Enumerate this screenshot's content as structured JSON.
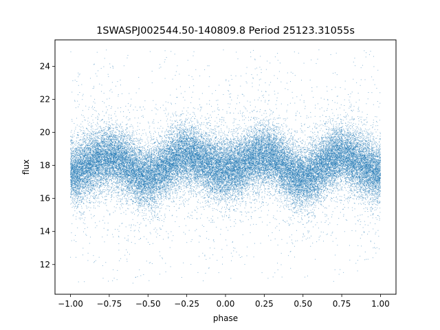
{
  "chart_data": {
    "type": "scatter",
    "title": "1SWASPJ002544.50-140809.8 Period 25123.31055s",
    "xlabel": "phase",
    "ylabel": "flux",
    "xlim": [
      -1.1,
      1.1
    ],
    "ylim": [
      10.2,
      25.6
    ],
    "xticks": [
      -1.0,
      -0.75,
      -0.5,
      -0.25,
      0.0,
      0.25,
      0.5,
      0.75,
      1.0
    ],
    "xtick_labels": [
      "−1.00",
      "−0.75",
      "−0.50",
      "−0.25",
      "0.00",
      "0.25",
      "0.50",
      "0.75",
      "1.00"
    ],
    "yticks": [
      12,
      14,
      16,
      18,
      20,
      22,
      24
    ],
    "ytick_labels": [
      "12",
      "14",
      "16",
      "18",
      "20",
      "22",
      "24"
    ],
    "grid": false,
    "legend": "none",
    "marker_color": "#1f77b4",
    "series": [
      {
        "x_range": [
          -1.0,
          1.0
        ],
        "y_range": [
          10.8,
          25.0
        ],
        "point_count": 40000,
        "profile": {
          "phase": [
            -1.0,
            -0.75,
            -0.5,
            -0.25,
            0.0,
            0.25,
            0.5,
            0.75,
            1.0
          ],
          "median_flux": [
            17.6,
            18.5,
            17.3,
            18.6,
            17.7,
            18.6,
            17.3,
            18.6,
            17.6
          ],
          "core_spread_sd": 0.9
        }
      }
    ]
  }
}
